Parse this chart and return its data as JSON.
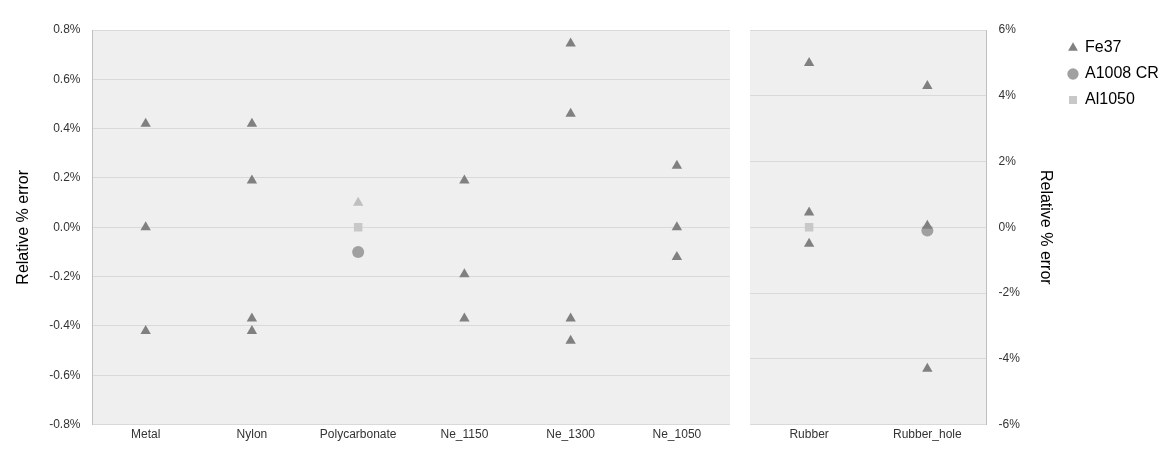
{
  "chart_data": [
    {
      "type": "scatter",
      "ylabel": "Relative % error",
      "categories": [
        "Metal",
        "Nylon",
        "Polycarbonate",
        "Ne_1150",
        "Ne_1300",
        "Ne_1050"
      ],
      "ylim": [
        -0.8,
        0.8
      ],
      "yticks": [
        {
          "value": -0.8,
          "label": "-0.8%"
        },
        {
          "value": -0.6,
          "label": "-0.6%"
        },
        {
          "value": -0.4,
          "label": "-0.4%"
        },
        {
          "value": -0.2,
          "label": "-0.2%"
        },
        {
          "value": 0,
          "label": "0.0%"
        },
        {
          "value": 0.2,
          "label": "0.2%"
        },
        {
          "value": 0.4,
          "label": "0.4%"
        },
        {
          "value": 0.6,
          "label": "0.6%"
        },
        {
          "value": 0.8,
          "label": "0.8%"
        }
      ],
      "grid": "y",
      "legend": false,
      "series": [
        {
          "marker": "triangle",
          "colors": [
            "#808080",
            "#808080",
            "#808080",
            "#808080",
            "#808080",
            "#808080",
            "#808080",
            "#bfbfbf",
            "#808080",
            "#808080",
            "#808080",
            "#808080",
            "#808080",
            "#808080",
            "#808080",
            "#808080",
            "#808080",
            "#808080"
          ],
          "x": [
            "Metal",
            "Metal",
            "Metal",
            "Nylon",
            "Nylon",
            "Nylon",
            "Nylon",
            "Polycarbonate",
            "Ne_1150",
            "Ne_1150",
            "Ne_1150",
            "Ne_1300",
            "Ne_1300",
            "Ne_1300",
            "Ne_1300",
            "Ne_1050",
            "Ne_1050",
            "Ne_1050"
          ],
          "values": [
            0.42,
            0,
            -0.42,
            0.42,
            0.19,
            -0.37,
            -0.42,
            0.1,
            0.19,
            -0.19,
            -0.37,
            0.745,
            0.46,
            -0.37,
            -0.46,
            0.25,
            0,
            -0.12
          ]
        },
        {
          "marker": "circle",
          "color": "#a0a0a0",
          "x": [
            "Polycarbonate"
          ],
          "values": [
            -0.1
          ]
        },
        {
          "marker": "square",
          "color": "#c8c8c8",
          "x": [
            "Polycarbonate"
          ],
          "values": [
            0
          ]
        }
      ]
    },
    {
      "type": "scatter",
      "y2label": "Relative % error",
      "categories": [
        "Rubber",
        "Rubber_hole"
      ],
      "y2lim": [
        -6,
        6
      ],
      "y2ticks": [
        {
          "value": -6,
          "label": "-6%"
        },
        {
          "value": -4,
          "label": "-4%"
        },
        {
          "value": -2,
          "label": "-2%"
        },
        {
          "value": 0,
          "label": "0%"
        },
        {
          "value": 2,
          "label": "2%"
        },
        {
          "value": 4,
          "label": "4%"
        },
        {
          "value": 6,
          "label": "6%"
        }
      ],
      "grid": "y",
      "legend": "top right",
      "series": [
        {
          "name": "Fe37",
          "marker": "triangle",
          "color": "#808080",
          "axis": "y2",
          "x": [
            "Rubber",
            "Rubber",
            "Rubber",
            "Rubber_hole",
            "Rubber_hole",
            "Rubber_hole"
          ],
          "values": [
            5.0,
            0.45,
            -0.5,
            4.3,
            0.05,
            -4.3
          ]
        },
        {
          "name": "A1008 CR",
          "marker": "circle",
          "color": "#a0a0a0",
          "axis": "y2",
          "x": [
            "Rubber_hole"
          ],
          "values": [
            -0.1
          ]
        },
        {
          "name": "Al1050",
          "marker": "square",
          "color": "#c8c8c8",
          "axis": "y2",
          "x": [
            "Rubber"
          ],
          "values": [
            0
          ]
        }
      ]
    }
  ]
}
